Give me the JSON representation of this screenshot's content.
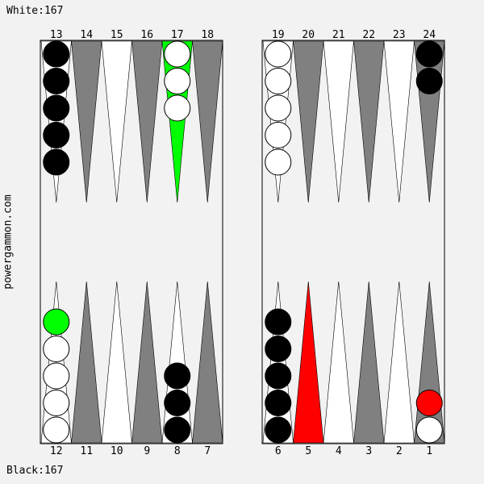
{
  "scores": {
    "white": "White:167",
    "black": "Black:167"
  },
  "watermark": "powergammon.com",
  "colors": {
    "background": "#f2f2f2",
    "dark_point": "#808080",
    "light_point": "#ffffff",
    "highlight_from": "#00ff00",
    "highlight_to": "#ff0000",
    "black_checker": "#000000",
    "white_checker": "#ffffff"
  },
  "top_labels": [
    "13",
    "14",
    "15",
    "16",
    "17",
    "18",
    "19",
    "20",
    "21",
    "22",
    "23",
    "24"
  ],
  "bottom_labels": [
    "12",
    "11",
    "10",
    "9",
    "8",
    "7",
    "6",
    "5",
    "4",
    "3",
    "2",
    "1"
  ],
  "highlights": {
    "from_point": 17,
    "to_point": 5
  },
  "position": [
    {
      "point": 13,
      "color": "black",
      "count": 5
    },
    {
      "point": 17,
      "color": "white",
      "count": 3
    },
    {
      "point": 19,
      "color": "white",
      "count": 5
    },
    {
      "point": 24,
      "color": "black",
      "count": 2
    },
    {
      "point": 12,
      "color": "white",
      "count": 4,
      "highlight_top": "green"
    },
    {
      "point": 8,
      "color": "black",
      "count": 3
    },
    {
      "point": 6,
      "color": "black",
      "count": 5
    },
    {
      "point": 1,
      "color": "white",
      "count": 1,
      "highlight_top": "red"
    }
  ]
}
